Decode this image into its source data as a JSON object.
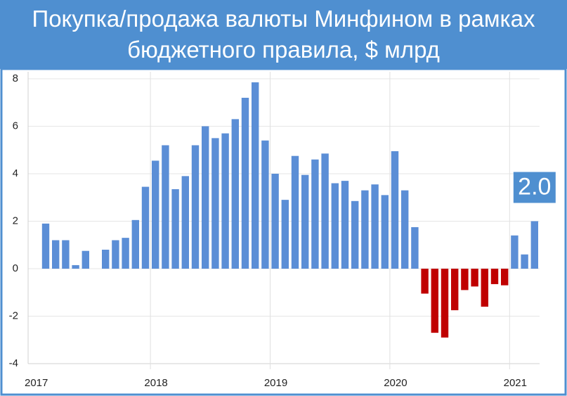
{
  "chart_data": {
    "type": "bar",
    "title": "Покупка/продажа валюты Минфином в рамках бюджетного правила, $ млрд",
    "categories": [
      "2017",
      null,
      null,
      null,
      null,
      null,
      null,
      null,
      null,
      null,
      null,
      null,
      "2018",
      null,
      null,
      null,
      null,
      null,
      null,
      null,
      null,
      null,
      null,
      null,
      "2019",
      null,
      null,
      null,
      null,
      null,
      null,
      null,
      null,
      null,
      null,
      null,
      "2020",
      null,
      null,
      null,
      null,
      null,
      null,
      null,
      null,
      null,
      null,
      null,
      "2021",
      null,
      null
    ],
    "values": [
      null,
      1.9,
      1.2,
      1.2,
      0.15,
      0.75,
      0,
      0.8,
      1.2,
      1.3,
      2.05,
      3.45,
      4.55,
      5.2,
      3.35,
      3.9,
      5.2,
      6.0,
      5.5,
      5.7,
      6.3,
      7.2,
      7.85,
      5.4,
      4.0,
      2.9,
      4.75,
      3.95,
      4.6,
      4.85,
      3.6,
      3.7,
      2.85,
      3.3,
      3.55,
      3.1,
      4.95,
      3.3,
      1.75,
      -1.05,
      -2.7,
      -2.9,
      -1.75,
      -0.9,
      -0.75,
      -1.6,
      -0.65,
      -0.7,
      1.4,
      0.6,
      2.0
    ],
    "value_labels": [
      null,
      null,
      null,
      null,
      null,
      null,
      null,
      null,
      null,
      null,
      null,
      null,
      null,
      null,
      null,
      null,
      null,
      null,
      null,
      null,
      null,
      null,
      null,
      null,
      null,
      null,
      null,
      null,
      null,
      null,
      null,
      null,
      null,
      null,
      null,
      null,
      null,
      null,
      null,
      null,
      null,
      null,
      null,
      null,
      null,
      null,
      null,
      null,
      null,
      null,
      "2.0"
    ],
    "color": "#5b8ed6",
    "negative_color": "#c00000",
    "ylim": [
      -4,
      8
    ],
    "yticks": [
      -4,
      -2,
      0,
      2,
      4,
      6,
      8
    ],
    "grid": true
  }
}
